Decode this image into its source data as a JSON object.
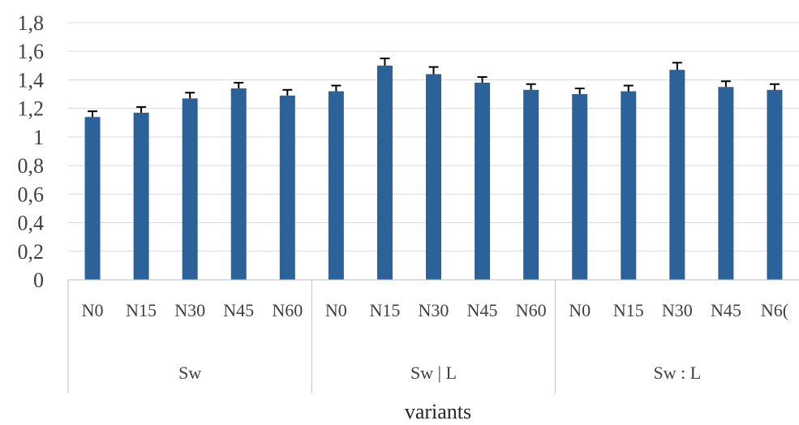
{
  "chart_data": {
    "type": "bar",
    "xlabel": "variants",
    "ylabel": "",
    "ylim": [
      0,
      1.8
    ],
    "ytick_step": 0.2,
    "ytick_labels": [
      "0",
      "0,2",
      "0,4",
      "0,6",
      "0,8",
      "1",
      "1,2",
      "1,4",
      "1,6",
      "1,8"
    ],
    "grid": "horizontal",
    "legend": "none",
    "groups": [
      "Sw",
      "Sw | L",
      "Sw : L"
    ],
    "categories": [
      "N0",
      "N15",
      "N30",
      "N45",
      "N60",
      "N0",
      "N15",
      "N30",
      "N45",
      "N60",
      "N0",
      "N15",
      "N30",
      "N45",
      "N6("
    ],
    "values": [
      1.14,
      1.17,
      1.27,
      1.34,
      1.29,
      1.32,
      1.5,
      1.44,
      1.38,
      1.33,
      1.3,
      1.32,
      1.47,
      1.35,
      1.33
    ],
    "error": [
      0.04,
      0.04,
      0.04,
      0.04,
      0.04,
      0.04,
      0.05,
      0.05,
      0.04,
      0.04,
      0.04,
      0.04,
      0.05,
      0.04,
      0.04
    ]
  },
  "colors": {
    "bar": "#2b6299",
    "error_bar": "#000000",
    "grid": "#d9d9d9",
    "axis": "#bfbfbf"
  }
}
